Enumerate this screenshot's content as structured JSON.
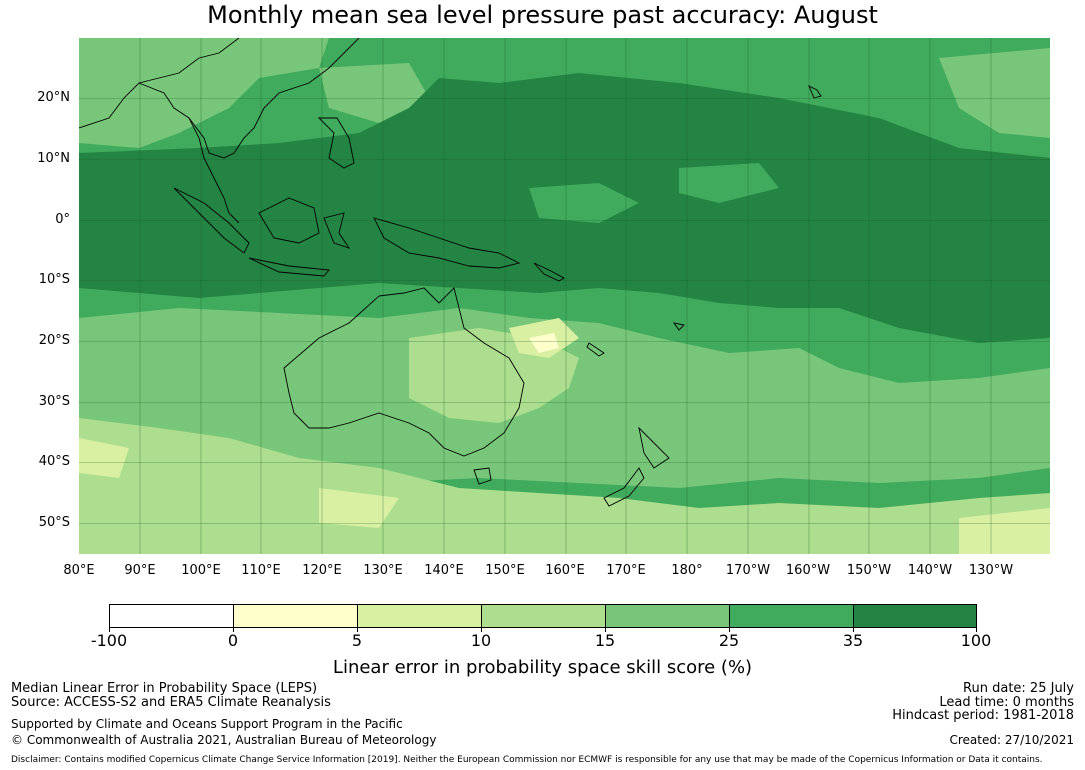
{
  "title": "Monthly mean sea level pressure past accuracy: August",
  "map": {
    "lat_labels": [
      "20°N",
      "10°N",
      "0°",
      "10°S",
      "20°S",
      "30°S",
      "40°S",
      "50°S"
    ],
    "lon_labels": [
      "80°E",
      "90°E",
      "100°E",
      "110°E",
      "120°E",
      "130°E",
      "140°E",
      "150°E",
      "160°E",
      "170°E",
      "180°",
      "170°W",
      "160°W",
      "150°W",
      "140°W",
      "130°W"
    ]
  },
  "colorbar": {
    "labels": [
      "-100",
      "0",
      "5",
      "10",
      "15",
      "25",
      "35",
      "100"
    ],
    "colors": [
      "#ffffff",
      "#ffffcc",
      "#d9f0a3",
      "#addd8e",
      "#78c679",
      "#41ab5d",
      "#238443"
    ],
    "title": "Linear error in probability space skill score (%)"
  },
  "footer": {
    "left_line1": "Median Linear Error in Probability Space (LEPS)",
    "left_line2": "Source: ACCESS-S2 and ERA5 Climate Reanalysis",
    "left_line3": "Supported by Climate and Oceans Support Program in the Pacific",
    "left_line4": "© Commonwealth of Australia 2021, Australian Bureau of Meteorology",
    "right_line1": "Run date: 25 July",
    "right_line2": "Lead time: 0 months",
    "right_line3": "Hindcast period: 1981-2018",
    "right_line4": "Created: 27/10/2021",
    "disclaimer": "Disclaimer: Contains modified Copernicus Climate Change Service Information [2019]. Neither the European Commission nor ECMWF is responsible for any use that may be made of the Copernicus Information or Data it contains."
  }
}
